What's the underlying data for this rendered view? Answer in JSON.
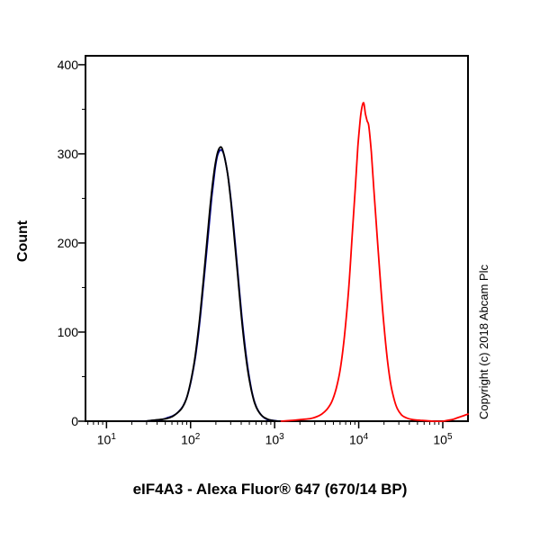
{
  "chart_data": {
    "type": "line",
    "subtype": "flow-cytometry-histogram",
    "xlabel": "eIF4A3 - Alexa Fluor® 647 (670/14 BP)",
    "ylabel": "Count",
    "copyright": "Copyright (c) 2018 Abcam Plc",
    "x_scale": "log10",
    "xlim_log10": [
      0.75,
      5.3
    ],
    "ylim": [
      0,
      410
    ],
    "x_major_tick_exponents": [
      1,
      2,
      3,
      4,
      5
    ],
    "y_major_ticks": [
      0,
      100,
      200,
      300,
      400
    ],
    "y_minor_step": 50,
    "grid": false,
    "legend": "none",
    "frame_color": "#000000",
    "series": [
      {
        "name": "control-navy",
        "color": "#000099",
        "peak_x_log10": 2.35,
        "peak_count": 304,
        "points": [
          [
            1.3,
            0
          ],
          [
            1.46,
            0
          ],
          [
            1.56,
            1
          ],
          [
            1.66,
            2
          ],
          [
            1.73,
            4
          ],
          [
            1.79,
            6
          ],
          [
            1.85,
            10
          ],
          [
            1.91,
            17
          ],
          [
            1.96,
            28
          ],
          [
            2.01,
            47
          ],
          [
            2.06,
            74
          ],
          [
            2.11,
            112
          ],
          [
            2.16,
            160
          ],
          [
            2.21,
            210
          ],
          [
            2.25,
            250
          ],
          [
            2.29,
            282
          ],
          [
            2.32,
            298
          ],
          [
            2.35,
            304
          ],
          [
            2.38,
            303
          ],
          [
            2.41,
            294
          ],
          [
            2.45,
            272
          ],
          [
            2.49,
            240
          ],
          [
            2.53,
            200
          ],
          [
            2.57,
            158
          ],
          [
            2.61,
            117
          ],
          [
            2.65,
            82
          ],
          [
            2.69,
            54
          ],
          [
            2.73,
            33
          ],
          [
            2.77,
            19
          ],
          [
            2.81,
            11
          ],
          [
            2.86,
            5
          ],
          [
            2.91,
            2
          ],
          [
            2.97,
            1
          ],
          [
            3.06,
            0
          ],
          [
            3.2,
            0
          ]
        ]
      },
      {
        "name": "control-black",
        "color": "#000000",
        "peak_x_log10": 2.36,
        "peak_count": 307,
        "points": [
          [
            1.3,
            0
          ],
          [
            1.45,
            0
          ],
          [
            1.55,
            1
          ],
          [
            1.65,
            2
          ],
          [
            1.72,
            3
          ],
          [
            1.78,
            5
          ],
          [
            1.84,
            9
          ],
          [
            1.9,
            15
          ],
          [
            1.95,
            25
          ],
          [
            2.0,
            44
          ],
          [
            2.05,
            70
          ],
          [
            2.1,
            108
          ],
          [
            2.15,
            156
          ],
          [
            2.2,
            207
          ],
          [
            2.24,
            248
          ],
          [
            2.28,
            280
          ],
          [
            2.31,
            297
          ],
          [
            2.34,
            306
          ],
          [
            2.37,
            307
          ],
          [
            2.4,
            298
          ],
          [
            2.44,
            278
          ],
          [
            2.48,
            246
          ],
          [
            2.52,
            206
          ],
          [
            2.56,
            164
          ],
          [
            2.6,
            122
          ],
          [
            2.64,
            86
          ],
          [
            2.68,
            57
          ],
          [
            2.72,
            36
          ],
          [
            2.76,
            21
          ],
          [
            2.8,
            12
          ],
          [
            2.85,
            6
          ],
          [
            2.9,
            3
          ],
          [
            2.96,
            1
          ],
          [
            3.05,
            0
          ],
          [
            3.2,
            0
          ]
        ]
      },
      {
        "name": "eif4a3-red",
        "color": "#ff0000",
        "peak_x_log10": 4.05,
        "peak_count": 357,
        "points": [
          [
            3.08,
            0
          ],
          [
            3.22,
            1
          ],
          [
            3.33,
            2
          ],
          [
            3.43,
            3
          ],
          [
            3.5,
            5
          ],
          [
            3.56,
            8
          ],
          [
            3.62,
            13
          ],
          [
            3.68,
            22
          ],
          [
            3.73,
            36
          ],
          [
            3.78,
            58
          ],
          [
            3.83,
            95
          ],
          [
            3.88,
            148
          ],
          [
            3.92,
            205
          ],
          [
            3.96,
            262
          ],
          [
            3.99,
            308
          ],
          [
            4.02,
            340
          ],
          [
            4.04,
            353
          ],
          [
            4.06,
            357
          ],
          [
            4.08,
            345
          ],
          [
            4.1,
            337
          ],
          [
            4.12,
            331
          ],
          [
            4.15,
            302
          ],
          [
            4.18,
            260
          ],
          [
            4.22,
            207
          ],
          [
            4.26,
            154
          ],
          [
            4.3,
            108
          ],
          [
            4.34,
            70
          ],
          [
            4.38,
            42
          ],
          [
            4.42,
            25
          ],
          [
            4.46,
            14
          ],
          [
            4.51,
            7
          ],
          [
            4.56,
            4
          ],
          [
            4.63,
            2
          ],
          [
            4.73,
            1
          ],
          [
            4.88,
            0
          ],
          [
            5.0,
            0
          ],
          [
            5.06,
            1
          ],
          [
            5.12,
            2
          ],
          [
            5.18,
            4
          ],
          [
            5.24,
            6
          ],
          [
            5.3,
            8
          ]
        ]
      }
    ]
  }
}
